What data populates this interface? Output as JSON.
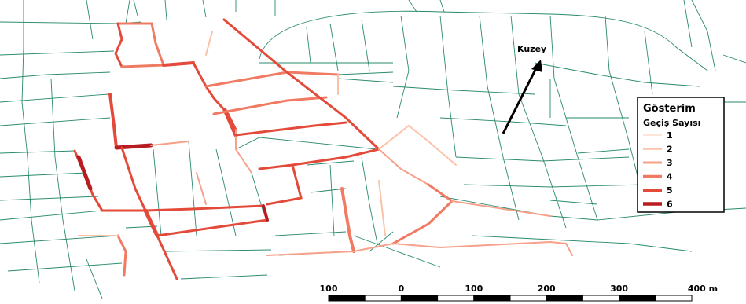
{
  "map": {
    "north_label": "Kuzey",
    "legend": {
      "title": "Gösterim",
      "subtitle": "Geçiş Sayısı",
      "items": [
        {
          "label": "1",
          "color": "#fde5d8"
        },
        {
          "label": "2",
          "color": "#fbc2a8"
        },
        {
          "label": "3",
          "color": "#f7a08a"
        },
        {
          "label": "4",
          "color": "#f07a62"
        },
        {
          "label": "5",
          "color": "#e34a3a"
        },
        {
          "label": "6",
          "color": "#b81c20"
        }
      ]
    },
    "scale_bar": {
      "labels": [
        "100",
        "0",
        "100",
        "200",
        "300",
        "400 m"
      ]
    },
    "colors": {
      "background_street": "#2a8a6e",
      "route_palette": [
        "#fde5d8",
        "#fbc2a8",
        "#f7a08a",
        "#f07a62",
        "#e34a3a",
        "#b81c20"
      ]
    }
  }
}
